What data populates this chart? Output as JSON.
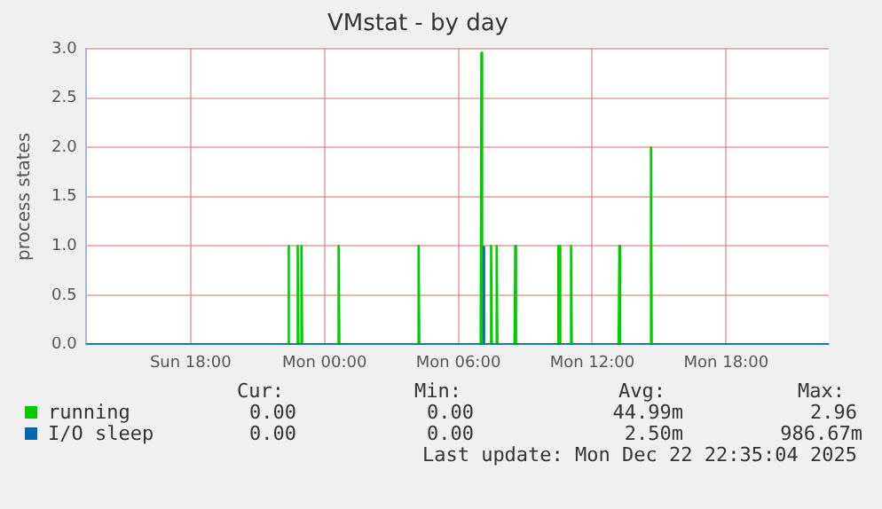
{
  "chart_data": {
    "type": "line",
    "title": "VMstat - by day",
    "ylabel": "process states",
    "xlim": [
      "2025-12-21T13:18",
      "2025-12-22T22:36"
    ],
    "xticks": [
      {
        "value": "2025-12-21T18:00",
        "label": "Sun 18:00"
      },
      {
        "value": "2025-12-22T00:00",
        "label": "Mon 00:00"
      },
      {
        "value": "2025-12-22T06:00",
        "label": "Mon 06:00"
      },
      {
        "value": "2025-12-22T12:00",
        "label": "Mon 12:00"
      },
      {
        "value": "2025-12-22T18:00",
        "label": "Mon 18:00"
      }
    ],
    "ylim": [
      0,
      3
    ],
    "yticks": [
      {
        "value": 0,
        "label": "0.0"
      },
      {
        "value": 0.5,
        "label": "0.5"
      },
      {
        "value": 1,
        "label": "1.0"
      },
      {
        "value": 1.5,
        "label": "1.5"
      },
      {
        "value": 2,
        "label": "2.0"
      },
      {
        "value": 2.5,
        "label": "2.5"
      },
      {
        "value": 3,
        "label": "3.0"
      }
    ],
    "grid": true,
    "legend": "bottom left",
    "marker": "none",
    "series": [
      {
        "name": "running",
        "color": "#00cc00",
        "x": [
          "2025-12-21T13:18",
          "2025-12-21T22:21",
          "2025-12-21T22:23",
          "2025-12-21T22:25",
          "2025-12-21T22:46",
          "2025-12-21T22:48",
          "2025-12-21T22:50",
          "2025-12-21T22:56",
          "2025-12-21T22:58",
          "2025-12-21T23:00",
          "2025-12-22T00:36",
          "2025-12-22T00:38",
          "2025-12-22T00:40",
          "2025-12-22T04:11",
          "2025-12-22T04:13",
          "2025-12-22T04:15",
          "2025-12-22T07:00",
          "2025-12-22T07:02",
          "2025-12-22T07:04",
          "2025-12-22T07:26",
          "2025-12-22T07:28",
          "2025-12-22T07:30",
          "2025-12-22T07:41",
          "2025-12-22T07:43",
          "2025-12-22T07:45",
          "2025-12-22T08:31",
          "2025-12-22T08:33",
          "2025-12-22T08:35",
          "2025-12-22T10:26",
          "2025-12-22T10:28",
          "2025-12-22T10:30",
          "2025-12-22T10:31",
          "2025-12-22T10:33",
          "2025-12-22T10:35",
          "2025-12-22T11:01",
          "2025-12-22T11:03",
          "2025-12-22T11:05",
          "2025-12-22T13:11",
          "2025-12-22T13:13",
          "2025-12-22T13:15",
          "2025-12-22T14:36",
          "2025-12-22T14:38",
          "2025-12-22T14:40",
          "2025-12-22T22:36"
        ],
        "values": [
          0,
          0,
          1,
          0,
          0,
          1,
          0,
          0,
          1,
          0,
          0,
          1,
          0,
          0,
          1,
          0,
          0,
          2.96,
          0,
          0,
          1,
          0,
          0,
          1,
          0,
          0,
          1,
          0,
          0,
          1,
          0,
          0,
          1,
          0,
          0,
          1,
          0,
          0,
          1,
          0,
          0,
          2,
          0,
          0
        ]
      },
      {
        "name": "I/O sleep",
        "color": "#0066b3",
        "x": [
          "2025-12-21T13:18",
          "2025-12-22T07:06",
          "2025-12-22T07:08",
          "2025-12-22T07:10",
          "2025-12-22T22:36"
        ],
        "values": [
          0,
          0,
          0.99,
          0,
          0
        ]
      }
    ],
    "annotations": [
      "Cur:",
      "Min:",
      "Avg:",
      "Max:",
      "0.00",
      "0.00",
      "44.99m",
      "2.96",
      "0.00",
      "0.00",
      "2.50m",
      "986.67m",
      "Last update: Mon Dec 22 22:35:04 2025"
    ]
  }
}
